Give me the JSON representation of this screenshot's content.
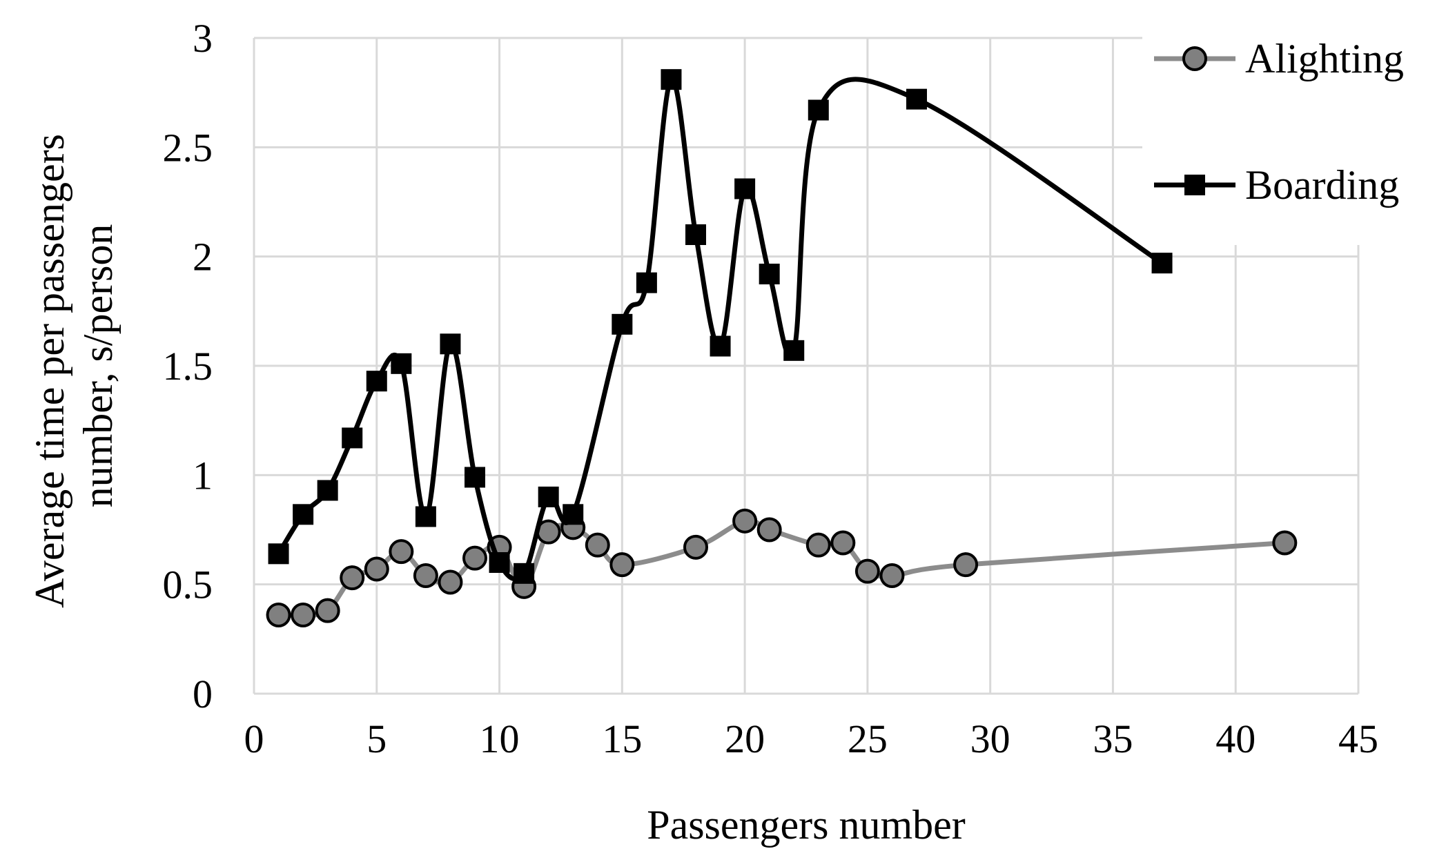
{
  "chart_data": {
    "type": "scatter",
    "xlabel": "Passengers number",
    "ylabel_lines": [
      "Average time per passengers",
      "number, s/person"
    ],
    "xlim": [
      0,
      45
    ],
    "ylim": [
      0,
      3
    ],
    "x_ticks": [
      "0",
      "5",
      "10",
      "15",
      "20",
      "25",
      "30",
      "35",
      "40",
      "45"
    ],
    "y_ticks": [
      "0",
      "0.5",
      "1",
      "1.5",
      "2",
      "2.5",
      "3"
    ],
    "grid": true,
    "legend_position": "top-right",
    "series": [
      {
        "name": "Alighting",
        "color": "#8c8c8c",
        "marker": "circle",
        "x": [
          1,
          2,
          3,
          4,
          5,
          6,
          7,
          8,
          9,
          10,
          11,
          12,
          13,
          14,
          15,
          18,
          20,
          21,
          23,
          24,
          25,
          26,
          29,
          42
        ],
        "y": [
          0.36,
          0.36,
          0.38,
          0.53,
          0.57,
          0.65,
          0.54,
          0.51,
          0.62,
          0.67,
          0.49,
          0.74,
          0.76,
          0.68,
          0.59,
          0.67,
          0.79,
          0.75,
          0.68,
          0.69,
          0.56,
          0.54,
          0.59,
          0.69
        ]
      },
      {
        "name": "Boarding",
        "color": "#000000",
        "marker": "square",
        "x": [
          1,
          2,
          3,
          4,
          5,
          6,
          7,
          8,
          9,
          10,
          11,
          12,
          13,
          15,
          16,
          17,
          18,
          19,
          20,
          21,
          22,
          23,
          27,
          37
        ],
        "y": [
          0.64,
          0.82,
          0.93,
          1.17,
          1.43,
          1.51,
          0.81,
          1.6,
          0.99,
          0.6,
          0.55,
          0.9,
          0.82,
          1.69,
          1.88,
          2.81,
          2.1,
          1.59,
          2.31,
          1.92,
          1.57,
          2.67,
          2.72,
          1.97
        ]
      }
    ]
  }
}
